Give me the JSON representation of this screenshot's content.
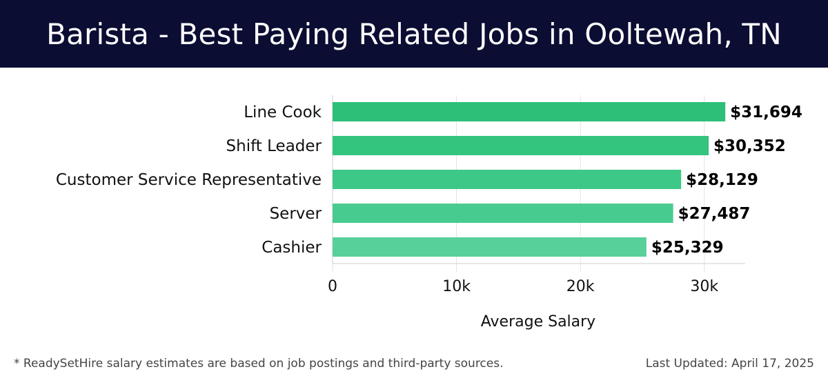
{
  "header": {
    "title": "Barista - Best Paying Related Jobs in Ooltewah, TN"
  },
  "chart_data": {
    "type": "bar",
    "orientation": "horizontal",
    "categories": [
      "Line Cook",
      "Shift Leader",
      "Customer Service Representative",
      "Server",
      "Cashier"
    ],
    "values": [
      31694,
      30352,
      28129,
      27487,
      25329
    ],
    "value_labels": [
      "$31,694",
      "$30,352",
      "$28,129",
      "$27,487",
      "$25,329"
    ],
    "bar_colors": [
      "#2bbf78",
      "#33c47e",
      "#3ec888",
      "#48cb8e",
      "#58d09a"
    ],
    "xlabel": "Average Salary",
    "xticks": [
      0,
      10000,
      20000,
      30000
    ],
    "xtick_labels": [
      "0",
      "10k",
      "20k",
      "30k"
    ],
    "xlim": [
      0,
      33300
    ],
    "grid": true,
    "title": "Barista - Best Paying Related Jobs in Ooltewah, TN"
  },
  "footer": {
    "note": "* ReadySetHire salary estimates are based on job postings and third-party sources.",
    "updated": "Last Updated: April 17, 2025"
  },
  "colors": {
    "header_bg": "#0c0d33",
    "grid": "#e3e3e3",
    "axis": "#cccccc"
  }
}
